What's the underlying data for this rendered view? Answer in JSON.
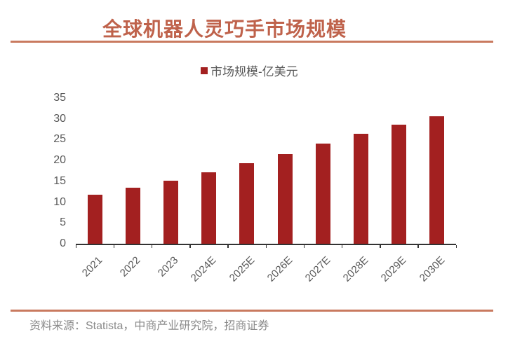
{
  "page": {
    "title": "全球机器人灵巧手市场规模",
    "source": "资料来源：Statista，中商产业研究院，招商证券"
  },
  "legend": {
    "label": "市场规模-亿美元"
  },
  "colors": {
    "bar": "#A32020",
    "title_text": "#BF624B",
    "accent_rule": "#C97A5F",
    "axis_label": "#595959",
    "axis_line": "#333333",
    "source_text": "#8A8A8A"
  },
  "chart_data": {
    "type": "bar",
    "title": "全球机器人灵巧手市场规模",
    "series_name": "市场规模-亿美元",
    "categories": [
      "2021",
      "2022",
      "2023",
      "2024E",
      "2025E",
      "2026E",
      "2027E",
      "2028E",
      "2029E",
      "2030E"
    ],
    "values": [
      11.8,
      13.4,
      15.1,
      17.2,
      19.4,
      21.6,
      24.0,
      26.4,
      28.6,
      30.7
    ],
    "unit": "亿美元",
    "xlabel": "",
    "ylabel": "",
    "ylim": [
      0,
      35
    ],
    "yticks": [
      0,
      5,
      10,
      15,
      20,
      25,
      30,
      35
    ],
    "grid": false,
    "legend_position": "top-center",
    "bar_color": "#A32020",
    "xtick_rotation_deg": 45
  }
}
